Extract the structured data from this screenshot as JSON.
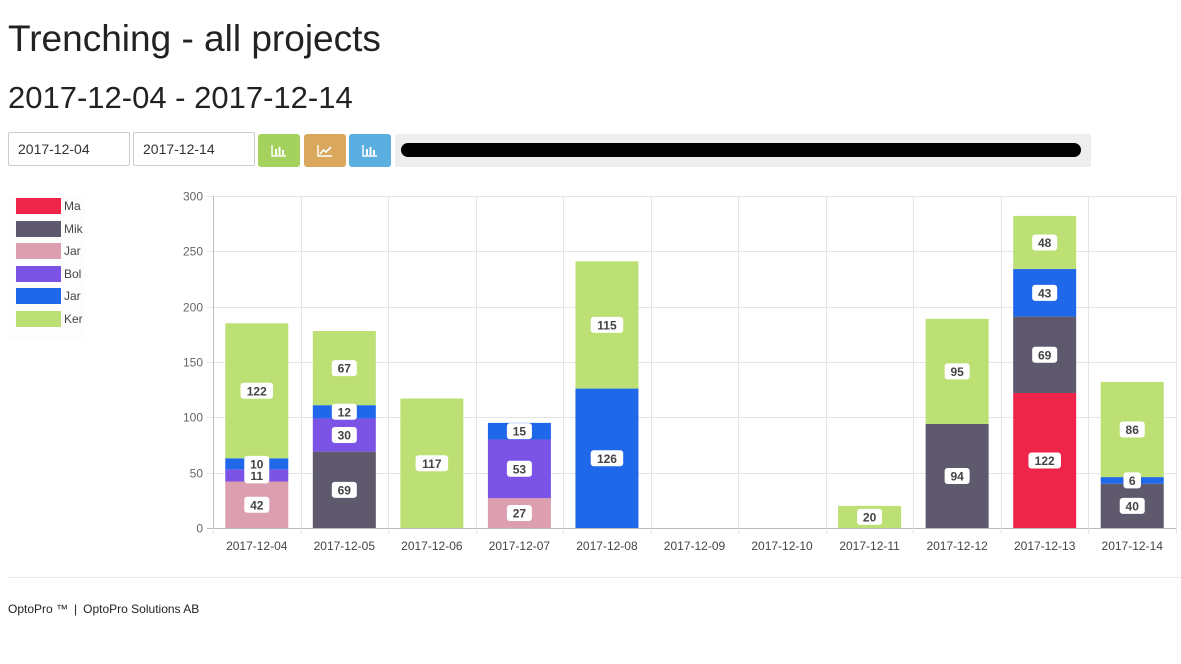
{
  "page": {
    "title": "Trenching - all projects",
    "subtitle": "2017-12-04 - 2017-12-14"
  },
  "controls": {
    "from_date": "2017-12-04",
    "to_date": "2017-12-14",
    "buttons": [
      {
        "icon": "bar-chart-icon",
        "color": "#a5d25f"
      },
      {
        "icon": "line-chart-icon",
        "color": "#d9a85c"
      },
      {
        "icon": "bar-chart-icon",
        "color": "#5aaee0"
      }
    ]
  },
  "legend": [
    {
      "label": "Ma",
      "color": "#ee2449"
    },
    {
      "label": "Mik",
      "color": "#5e596d"
    },
    {
      "label": "Jar",
      "color": "#dc9faf"
    },
    {
      "label": "Bol",
      "color": "#7b54e6"
    },
    {
      "label": "Jar",
      "color": "#1f68e9"
    },
    {
      "label": "Ker",
      "color": "#bde075"
    }
  ],
  "chart_data": {
    "type": "bar",
    "stacked": true,
    "categories": [
      "2017-12-04",
      "2017-12-05",
      "2017-12-06",
      "2017-12-07",
      "2017-12-08",
      "2017-12-09",
      "2017-12-10",
      "2017-12-11",
      "2017-12-12",
      "2017-12-13",
      "2017-12-14"
    ],
    "ylim": [
      0,
      300
    ],
    "yticks": [
      0,
      50,
      100,
      150,
      200,
      250,
      300
    ],
    "grid": true,
    "legend_position": "left",
    "series": [
      {
        "color": "#ee2449",
        "values": [
          0,
          0,
          0,
          0,
          0,
          0,
          0,
          0,
          0,
          122,
          0
        ]
      },
      {
        "color": "#5e596d",
        "values": [
          0,
          69,
          0,
          0,
          0,
          0,
          0,
          0,
          94,
          69,
          40
        ]
      },
      {
        "color": "#dc9faf",
        "values": [
          42,
          0,
          0,
          27,
          0,
          0,
          0,
          0,
          0,
          0,
          0
        ]
      },
      {
        "color": "#7b54e6",
        "values": [
          11,
          30,
          0,
          53,
          0,
          0,
          0,
          0,
          0,
          0,
          0
        ]
      },
      {
        "color": "#1f68e9",
        "values": [
          10,
          12,
          0,
          15,
          126,
          0,
          0,
          0,
          0,
          43,
          6
        ]
      },
      {
        "color": "#bde075",
        "values": [
          122,
          67,
          117,
          0,
          115,
          0,
          0,
          20,
          95,
          48,
          86
        ]
      }
    ]
  },
  "footer": {
    "brand": "OptoPro ™",
    "separator": "|",
    "company": "OptoPro Solutions AB"
  }
}
